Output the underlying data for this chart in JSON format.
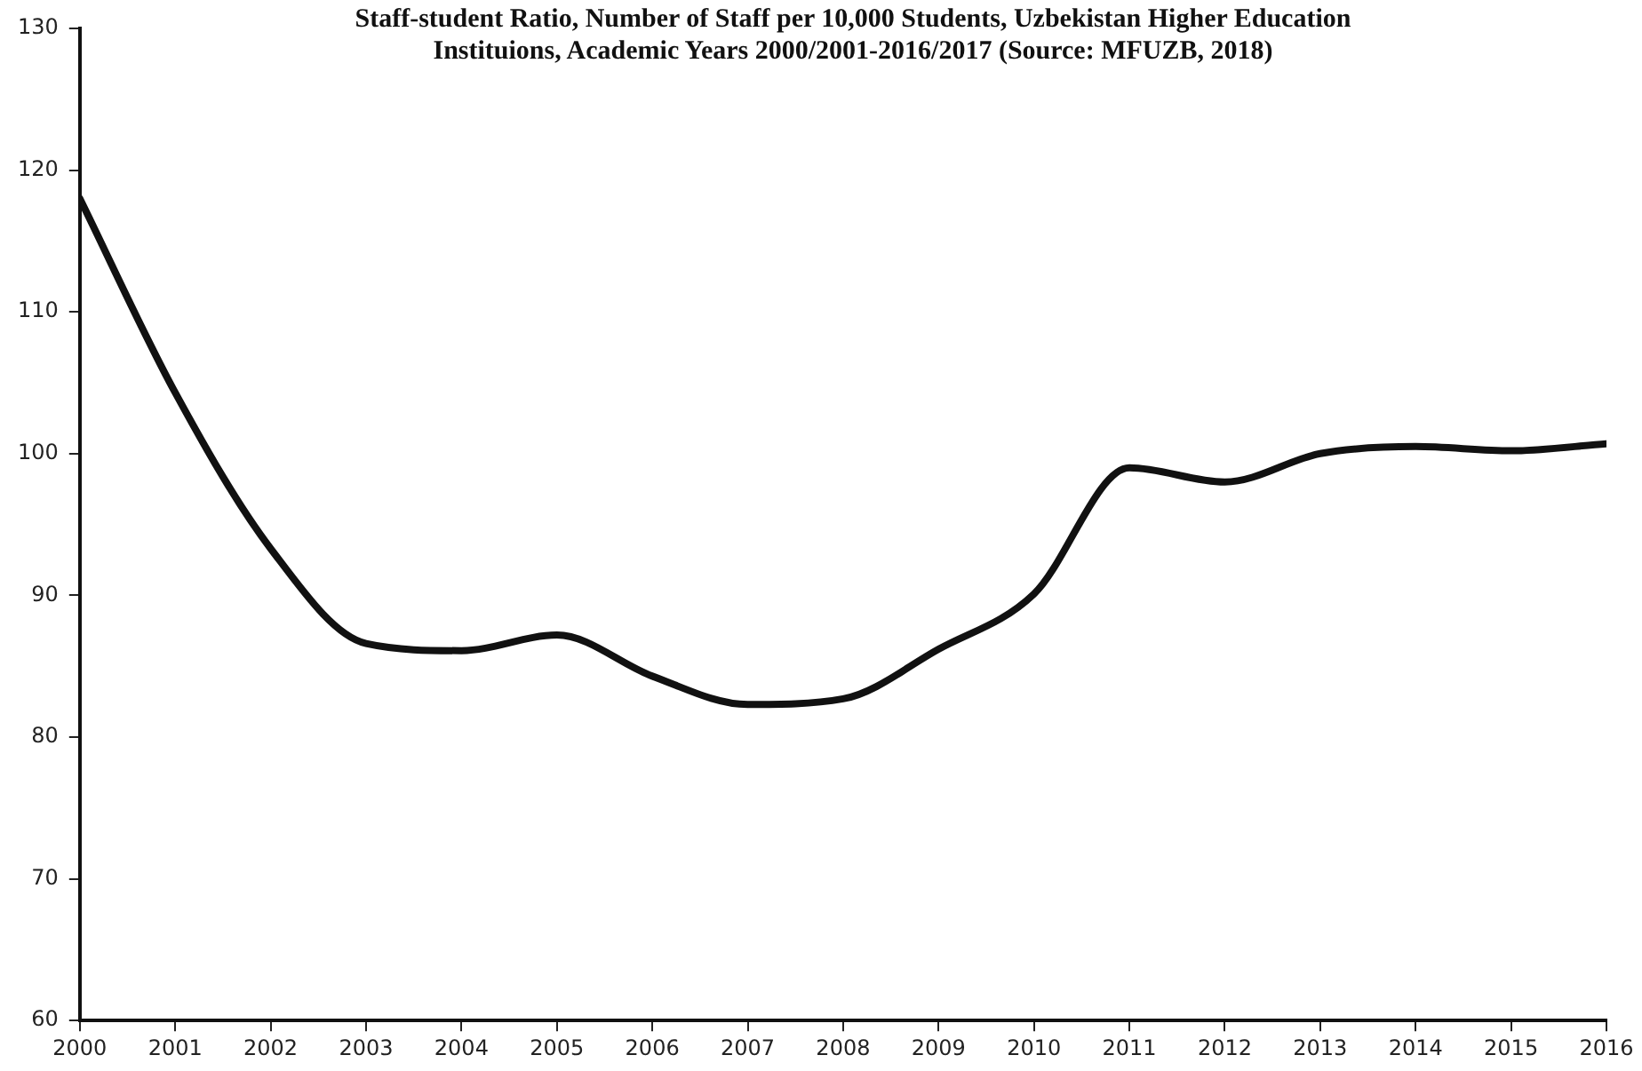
{
  "chart_data": {
    "type": "line",
    "title": "Staff-student Ratio, Number of Staff per 10,000 Students, Uzbekistan Higher Education Instituions, Academic Years 2000/2001-2016/2017 (Source: MFUZB, 2018)",
    "x": [
      2000,
      2001,
      2002,
      2003,
      2004,
      2005,
      2006,
      2007,
      2008,
      2009,
      2010,
      2011,
      2012,
      2013,
      2014,
      2015,
      2016
    ],
    "series": [
      {
        "color": "#111111",
        "values": [
          118,
          104.3,
          93.3,
          86.6,
          86.1,
          87.2,
          84.3,
          82.3,
          82.7,
          86.2,
          90.1,
          99.0,
          98.0,
          100.0,
          100.5,
          100.2,
          100.7
        ]
      }
    ],
    "xlim": [
      2000,
      2016
    ],
    "xticks": [
      2000,
      2001,
      2002,
      2003,
      2004,
      2005,
      2006,
      2007,
      2008,
      2009,
      2010,
      2011,
      2012,
      2013,
      2014,
      2015,
      2016
    ],
    "ylim": [
      60,
      130
    ],
    "yticks": [
      60,
      70,
      80,
      90,
      100,
      110,
      120,
      130
    ],
    "grid": false,
    "legend": false,
    "marker": "none",
    "line_style": "solid"
  }
}
